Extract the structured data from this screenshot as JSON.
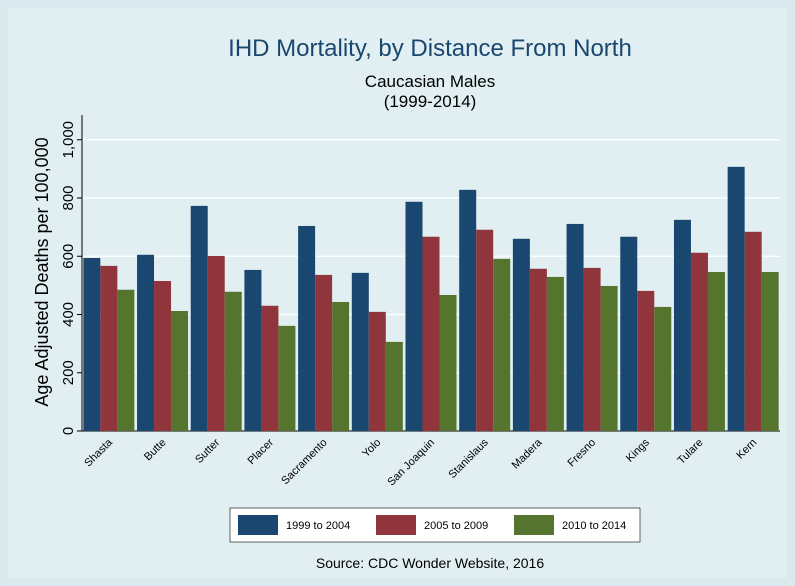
{
  "chart_data": {
    "type": "bar",
    "title": "IHD Mortality, by Distance From North",
    "subtitle": "Caucasian Males",
    "subtitle2": "(1999-2014)",
    "y_label": "Age Adjusted Deaths per 100,000",
    "note": "Source:  CDC Wonder Website, 2016",
    "categories": [
      "Shasta",
      "Butte",
      "Sutter",
      "Placer",
      "Sacramento",
      "Yolo",
      "San Joaquin",
      "Stanislaus",
      "Madera",
      "Fresno",
      "Kings",
      "Tulare",
      "Kern"
    ],
    "series": [
      {
        "name": "1999 to 2004",
        "color": "#1a476f",
        "values": [
          594,
          605,
          773,
          553,
          704,
          543,
          787,
          828,
          660,
          711,
          667,
          725,
          907
        ]
      },
      {
        "name": "2005 to 2009",
        "color": "#90353b",
        "values": [
          567,
          515,
          601,
          430,
          536,
          409,
          667,
          691,
          557,
          560,
          481,
          612,
          684
        ]
      },
      {
        "name": "2010 to 2014",
        "color": "#55752f",
        "values": [
          485,
          412,
          478,
          361,
          443,
          306,
          467,
          591,
          529,
          498,
          426,
          546,
          546
        ]
      }
    ],
    "ylim": [
      0,
      1085
    ],
    "yticks": [
      0,
      200,
      400,
      600,
      800,
      {
        "value": 1000,
        "label": "1,000"
      }
    ],
    "grid": true,
    "legend": "bottom"
  }
}
